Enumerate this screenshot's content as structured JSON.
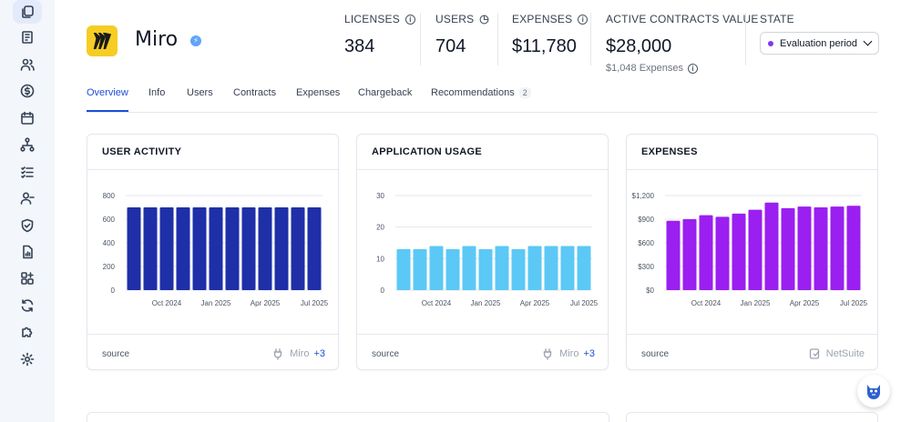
{
  "app": {
    "name": "Miro",
    "verified_icon": "check-badge-icon"
  },
  "stats": {
    "licenses": {
      "label": "LICENSES",
      "value": "384"
    },
    "users": {
      "label": "USERS",
      "value": "704"
    },
    "expenses": {
      "label": "EXPENSES",
      "value": "$11,780"
    },
    "contracts": {
      "label": "ACTIVE CONTRACTS VALUE",
      "value": "$28,000",
      "sub": "$1,048 Expenses"
    },
    "state": {
      "label": "STATE",
      "value": "Evaluation period",
      "dot_color": "#7c3aed"
    }
  },
  "tabs": [
    {
      "label": "Overview",
      "active": true
    },
    {
      "label": "Info"
    },
    {
      "label": "Users"
    },
    {
      "label": "Contracts"
    },
    {
      "label": "Expenses"
    },
    {
      "label": "Chargeback"
    },
    {
      "label": "Recommendations",
      "badge": "2"
    }
  ],
  "sidebar": [
    "copy-icon",
    "receipt-icon",
    "users-icon",
    "dollar-icon",
    "calendar-icon",
    "org-chart-icon",
    "checklist-icon",
    "user-minus-icon",
    "shield-icon",
    "report-icon",
    "apps-add-icon",
    "refresh-icon",
    "puzzle-icon",
    "gear-icon"
  ],
  "cards": [
    {
      "title": "USER ACTIVITY",
      "footer": "source",
      "source": "Miro",
      "more": "+3"
    },
    {
      "title": "APPLICATION USAGE",
      "footer": "source",
      "source": "Miro",
      "more": "+3"
    },
    {
      "title": "EXPENSES",
      "footer": "source",
      "source": "NetSuite"
    }
  ],
  "chart_data": [
    {
      "type": "bar",
      "color": "#1e2fa8",
      "ylim": [
        0,
        800
      ],
      "yticks": [
        "800",
        "600",
        "400",
        "200",
        "0"
      ],
      "xticks": [
        "Oct 2024",
        "Jan 2025",
        "Apr 2025",
        "Jul 2025"
      ],
      "xtick_index": [
        2,
        5,
        8,
        11
      ],
      "values": [
        700,
        700,
        700,
        700,
        700,
        700,
        700,
        700,
        700,
        700,
        700,
        700
      ]
    },
    {
      "type": "bar",
      "color": "#5cc8f5",
      "ylim": [
        0,
        30
      ],
      "yticks": [
        "30",
        "20",
        "10",
        "0"
      ],
      "xticks": [
        "Oct 2024",
        "Jan 2025",
        "Apr 2025",
        "Jul 2025"
      ],
      "xtick_index": [
        2,
        5,
        8,
        11
      ],
      "values": [
        13,
        13,
        14,
        13,
        14,
        13,
        14,
        13,
        14,
        14,
        14,
        14
      ]
    },
    {
      "type": "bar",
      "color": "#9a1ff0",
      "ylim": [
        0,
        1200
      ],
      "yticks": [
        "$1,200",
        "$900",
        "$600",
        "$300",
        "$0"
      ],
      "xticks": [
        "Oct 2024",
        "Jan 2025",
        "Apr 2025",
        "Jul 2025"
      ],
      "xtick_index": [
        2,
        5,
        8,
        11
      ],
      "values": [
        880,
        900,
        950,
        930,
        970,
        1020,
        1110,
        1040,
        1060,
        1050,
        1060,
        1070
      ]
    }
  ]
}
